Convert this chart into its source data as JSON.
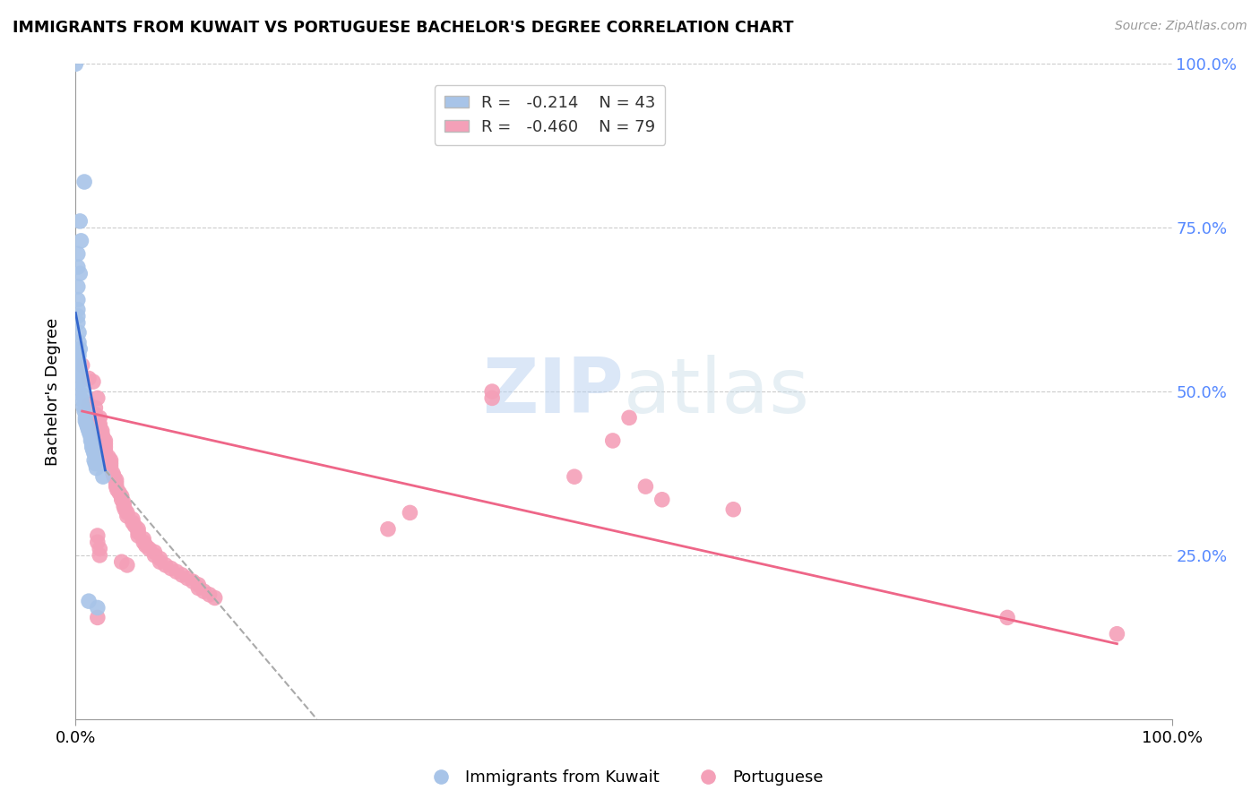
{
  "title": "IMMIGRANTS FROM KUWAIT VS PORTUGUESE BACHELOR'S DEGREE CORRELATION CHART",
  "source": "Source: ZipAtlas.com",
  "ylabel": "Bachelor's Degree",
  "legend_labels": [
    "Immigrants from Kuwait",
    "Portuguese"
  ],
  "r_kuwait": -0.214,
  "n_kuwait": 43,
  "r_portuguese": -0.46,
  "n_portuguese": 79,
  "blue_color": "#a8c4e8",
  "pink_color": "#f4a0b8",
  "blue_line_color": "#3366cc",
  "pink_line_color": "#ee6688",
  "dashed_line_color": "#aaaaaa",
  "kuwait_points_x": [
    0.0,
    0.008,
    0.004,
    0.005,
    0.002,
    0.002,
    0.004,
    0.002,
    0.002,
    0.002,
    0.002,
    0.002,
    0.003,
    0.003,
    0.004,
    0.003,
    0.003,
    0.003,
    0.004,
    0.004,
    0.005,
    0.006,
    0.006,
    0.007,
    0.008,
    0.009,
    0.009,
    0.01,
    0.011,
    0.012,
    0.013,
    0.014,
    0.014,
    0.015,
    0.015,
    0.016,
    0.017,
    0.017,
    0.018,
    0.019,
    0.025,
    0.012,
    0.02
  ],
  "kuwait_points_y": [
    1.0,
    0.82,
    0.76,
    0.73,
    0.71,
    0.69,
    0.68,
    0.66,
    0.64,
    0.625,
    0.615,
    0.605,
    0.59,
    0.575,
    0.565,
    0.555,
    0.545,
    0.535,
    0.525,
    0.515,
    0.505,
    0.495,
    0.487,
    0.477,
    0.47,
    0.46,
    0.455,
    0.45,
    0.445,
    0.44,
    0.435,
    0.43,
    0.425,
    0.42,
    0.415,
    0.41,
    0.405,
    0.395,
    0.39,
    0.383,
    0.37,
    0.18,
    0.17
  ],
  "portuguese_points_x": [
    0.006,
    0.012,
    0.016,
    0.02,
    0.012,
    0.018,
    0.018,
    0.022,
    0.022,
    0.022,
    0.024,
    0.024,
    0.025,
    0.027,
    0.027,
    0.027,
    0.027,
    0.03,
    0.032,
    0.032,
    0.032,
    0.034,
    0.035,
    0.037,
    0.037,
    0.037,
    0.038,
    0.04,
    0.042,
    0.042,
    0.044,
    0.044,
    0.045,
    0.047,
    0.047,
    0.052,
    0.052,
    0.054,
    0.057,
    0.057,
    0.057,
    0.062,
    0.062,
    0.064,
    0.067,
    0.072,
    0.072,
    0.077,
    0.077,
    0.082,
    0.087,
    0.092,
    0.097,
    0.102,
    0.107,
    0.112,
    0.112,
    0.117,
    0.122,
    0.127,
    0.02,
    0.02,
    0.022,
    0.022,
    0.042,
    0.047,
    0.38,
    0.455,
    0.505,
    0.52,
    0.535,
    0.49,
    0.6,
    0.85,
    0.95,
    0.38,
    0.02,
    0.285,
    0.305
  ],
  "portuguese_points_y": [
    0.54,
    0.52,
    0.515,
    0.49,
    0.48,
    0.475,
    0.465,
    0.46,
    0.45,
    0.445,
    0.44,
    0.435,
    0.43,
    0.425,
    0.42,
    0.415,
    0.41,
    0.4,
    0.395,
    0.39,
    0.385,
    0.375,
    0.37,
    0.365,
    0.36,
    0.355,
    0.35,
    0.345,
    0.34,
    0.335,
    0.33,
    0.325,
    0.32,
    0.315,
    0.31,
    0.305,
    0.3,
    0.295,
    0.29,
    0.285,
    0.28,
    0.275,
    0.27,
    0.265,
    0.26,
    0.255,
    0.25,
    0.245,
    0.24,
    0.235,
    0.23,
    0.225,
    0.22,
    0.215,
    0.21,
    0.205,
    0.2,
    0.195,
    0.19,
    0.185,
    0.28,
    0.27,
    0.26,
    0.25,
    0.24,
    0.235,
    0.5,
    0.37,
    0.46,
    0.355,
    0.335,
    0.425,
    0.32,
    0.155,
    0.13,
    0.49,
    0.155,
    0.29,
    0.315
  ],
  "xlim": [
    0.0,
    1.0
  ],
  "ylim": [
    0.0,
    1.0
  ],
  "blue_line_x": [
    0.0,
    0.027
  ],
  "blue_line_y": [
    0.62,
    0.38
  ],
  "dashed_line_x": [
    0.027,
    0.22
  ],
  "dashed_line_y": [
    0.38,
    0.0
  ],
  "pink_line_x": [
    0.006,
    0.95
  ],
  "pink_line_y": [
    0.47,
    0.115
  ]
}
